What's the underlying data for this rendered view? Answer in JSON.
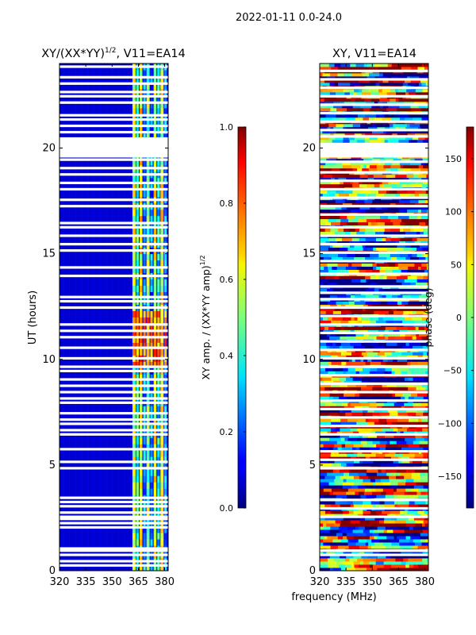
{
  "figure": {
    "suptitle": "2022-01-11 0.0-24.0",
    "xlabel": "frequency (MHz)"
  },
  "chart_data": [
    {
      "type": "heatmap",
      "title_main": "XY/(XX*YY)",
      "title_sup": "1/2",
      "title_tail": ", V11=EA14",
      "xlabel": "",
      "ylabel": "UT (hours)",
      "x": [
        320,
        335,
        350,
        365,
        380
      ],
      "xlim": [
        320,
        382
      ],
      "y": [
        0,
        5,
        10,
        15,
        20
      ],
      "ylim": [
        0,
        24
      ],
      "colorbar": {
        "label_main": "XY amp. / (XX*YY amp)",
        "label_sup": "1/2",
        "ticks": [
          "0.0",
          "0.2",
          "0.4",
          "0.6",
          "0.8",
          "1.0"
        ],
        "tick_values": [
          0,
          0.2,
          0.4,
          0.6,
          0.8,
          1.0
        ],
        "range": [
          0,
          1
        ]
      },
      "colormap": "jet",
      "flagged_rows_ut": [
        0.25,
        0.45,
        0.75,
        0.95,
        1.05,
        2.05,
        2.25,
        2.45,
        2.55,
        2.75,
        3.05,
        3.25,
        3.45,
        4.85,
        5.15,
        5.75,
        6.45,
        6.65,
        6.95,
        7.15,
        7.45,
        7.95,
        8.15,
        8.45,
        8.75,
        9.05,
        9.45,
        9.65,
        10.05,
        10.55,
        11.05,
        11.35,
        11.65,
        12.45,
        12.75,
        12.95,
        13.95,
        14.35,
        15.15,
        15.45,
        15.85,
        16.25,
        16.45,
        17.25,
        17.55,
        18.05,
        18.35,
        18.75,
        19.05,
        19.45,
        19.75,
        20.15,
        20.45,
        20.75,
        21.05,
        21.35,
        21.55,
        22.15,
        22.45,
        22.65,
        23.05,
        23.35,
        23.85
      ],
      "flagged_block_ut": [
        19.55,
        20.45
      ],
      "flagged_rows_width_h": 0.12,
      "active_band_mhz": [
        361,
        382
      ],
      "active_channels": [
        {
          "center_mhz": 362.5,
          "width_mhz": 1.8,
          "level": 0.55
        },
        {
          "center_mhz": 364.5,
          "width_mhz": 1.5,
          "level": 0.4
        },
        {
          "center_mhz": 366.5,
          "width_mhz": 1.6,
          "level": 0.62
        },
        {
          "center_mhz": 368.5,
          "width_mhz": 1.4,
          "level": 0.3
        },
        {
          "center_mhz": 370.5,
          "width_mhz": 1.8,
          "level": 0.5
        },
        {
          "center_mhz": 372.5,
          "width_mhz": 1.4,
          "level": 0.25
        },
        {
          "center_mhz": 374.5,
          "width_mhz": 1.6,
          "level": 0.58
        },
        {
          "center_mhz": 376.5,
          "width_mhz": 1.5,
          "level": 0.35
        },
        {
          "center_mhz": 378.5,
          "width_mhz": 1.8,
          "level": 0.6
        },
        {
          "center_mhz": 380.5,
          "width_mhz": 1.4,
          "level": 0.3
        }
      ],
      "bright_band_ut": [
        9.5,
        12.5
      ],
      "bright_band_level": 0.75,
      "baseline_level": 0.08
    },
    {
      "type": "heatmap",
      "title_main": "XY, V11=EA14",
      "title_sup": "",
      "title_tail": "",
      "xlabel": "",
      "ylabel": "",
      "x": [
        320,
        335,
        350,
        365,
        380
      ],
      "xlim": [
        320,
        382
      ],
      "y": [
        0,
        5,
        10,
        15,
        20
      ],
      "ylim": [
        0,
        24
      ],
      "colorbar": {
        "label_main": "phase (deg)",
        "label_sup": "",
        "ticks": [
          "150",
          "100",
          "50",
          "0",
          "−50",
          "−100",
          "−150"
        ],
        "tick_values": [
          150,
          100,
          50,
          0,
          -50,
          -100,
          -150
        ],
        "range": [
          -180,
          180
        ]
      },
      "colormap": "jet",
      "flagged_rows_ut": [
        0.75,
        0.95,
        2.55,
        2.95,
        3.35,
        4.85,
        5.25,
        5.65,
        6.45,
        6.85,
        7.25,
        7.65,
        8.05,
        8.45,
        8.85,
        9.25,
        9.65,
        10.05,
        10.45,
        10.85,
        11.25,
        11.65,
        12.05,
        12.45,
        12.85,
        13.15,
        13.45,
        14.05,
        14.65,
        15.05,
        15.45,
        15.85,
        16.25,
        16.85,
        17.25,
        17.65,
        18.05,
        18.45,
        18.85,
        19.35,
        20.05,
        20.55,
        20.85,
        21.25,
        21.65,
        22.05,
        22.45,
        22.85,
        23.25,
        23.65
      ],
      "flagged_block_ut": [
        19.55,
        20.25
      ],
      "flagged_rows_width_h": 0.12
    }
  ]
}
